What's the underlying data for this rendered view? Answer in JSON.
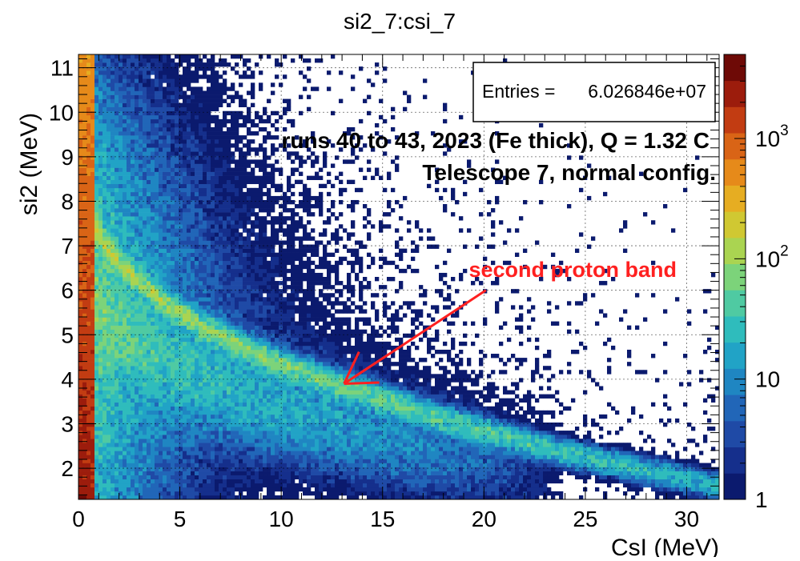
{
  "chart_data": {
    "type": "heatmap",
    "title": "si2_7:csi_7",
    "xlabel": "CsI (MeV)",
    "ylabel": "si2 (MeV)",
    "xlim": [
      0,
      31.6
    ],
    "ylim": [
      1.3,
      11.3
    ],
    "x_ticks": [
      0,
      5,
      10,
      15,
      20,
      25,
      30
    ],
    "y_ticks": [
      2,
      3,
      4,
      5,
      6,
      7,
      8,
      9,
      10,
      11
    ],
    "grid": true,
    "z_scale": "log",
    "zlim": [
      1,
      5000
    ],
    "z_ticks": [
      {
        "value": 1,
        "label": "1"
      },
      {
        "value": 10,
        "label": "10"
      },
      {
        "value": 100,
        "label": "10",
        "exp": "2"
      },
      {
        "value": 1000,
        "label": "10",
        "exp": "3"
      }
    ],
    "stats_box": {
      "label": "Entries =",
      "value": "6.026846e+07"
    },
    "annotations": {
      "runs": "runs 40 to 43, 2023 (Fe thick), Q = 1.32 C",
      "telescope": "Telescope 7, normal config.",
      "band": "second proton band",
      "band_color": "#ff2020",
      "arrow_from": [
        20.1,
        6.0
      ],
      "arrow_to": [
        13.1,
        3.9
      ]
    },
    "features": {
      "proton_band": [
        [
          0.8,
          7.4
        ],
        [
          2,
          6.6
        ],
        [
          4,
          5.8
        ],
        [
          6,
          5.2
        ],
        [
          8,
          4.75
        ],
        [
          10,
          4.35
        ],
        [
          12,
          4.0
        ],
        [
          14,
          3.7
        ],
        [
          16,
          3.4
        ],
        [
          18,
          3.1
        ],
        [
          20,
          2.85
        ],
        [
          22,
          2.6
        ],
        [
          24,
          2.35
        ],
        [
          26,
          2.15
        ]
      ],
      "band_peak_counts": 120,
      "noise_edge_column_x": [
        0,
        0.7
      ],
      "noise_edge_peak_counts": 4000
    },
    "palette": [
      "#0b1a6e",
      "#152f8c",
      "#1f4aa6",
      "#2166b8",
      "#1f86c2",
      "#21a3c6",
      "#2fbcbc",
      "#4fcaa2",
      "#7cd37a",
      "#aad451",
      "#d0c832",
      "#e6ad22",
      "#e68a1a",
      "#d96416",
      "#c23c12",
      "#9c1c0c",
      "#6e0a06"
    ]
  }
}
